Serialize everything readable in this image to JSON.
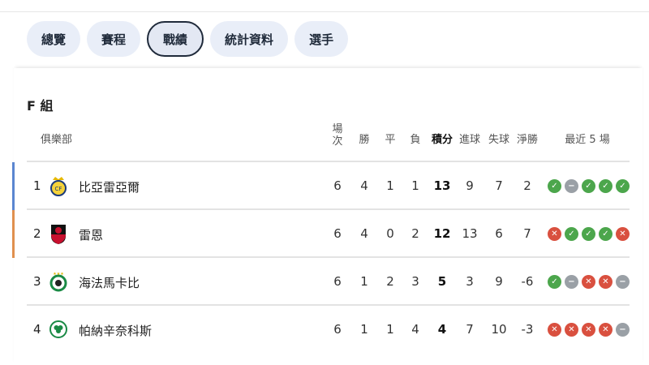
{
  "tabs": [
    "總覽",
    "賽程",
    "戰績",
    "統計資料",
    "選手"
  ],
  "active_tab": "戰績",
  "group_title": "F 組",
  "headers": {
    "club": "俱樂部",
    "played": "場\n次",
    "won": "勝",
    "drawn": "平",
    "lost": "負",
    "points": "積分",
    "gf": "進球",
    "ga": "失球",
    "gd": "淨勝",
    "form": "最近 5 場"
  },
  "colors": {
    "win": "#4ca64c",
    "draw": "#9aa0a6",
    "loss": "#d9503f",
    "qual1": "#5b86d0",
    "qual2": "#e0904f"
  },
  "rows": [
    {
      "rank": "1",
      "club": "比亞雷亞爾",
      "played": "6",
      "won": "4",
      "drawn": "1",
      "lost": "1",
      "points": "13",
      "gf": "9",
      "ga": "7",
      "gd": "2",
      "form": [
        "W",
        "D",
        "W",
        "W",
        "W"
      ],
      "logo": "villarreal-crest"
    },
    {
      "rank": "2",
      "club": "雷恩",
      "played": "6",
      "won": "4",
      "drawn": "0",
      "lost": "2",
      "points": "12",
      "gf": "13",
      "ga": "6",
      "gd": "7",
      "form": [
        "L",
        "W",
        "W",
        "W",
        "L"
      ],
      "logo": "rennes-crest"
    },
    {
      "rank": "3",
      "club": "海法馬卡比",
      "played": "6",
      "won": "1",
      "drawn": "2",
      "lost": "3",
      "points": "5",
      "gf": "3",
      "ga": "9",
      "gd": "-6",
      "form": [
        "W",
        "D",
        "L",
        "L",
        "D"
      ],
      "logo": "maccabi-haifa-crest"
    },
    {
      "rank": "4",
      "club": "帕納辛奈科斯",
      "played": "6",
      "won": "1",
      "drawn": "1",
      "lost": "4",
      "points": "4",
      "gf": "7",
      "ga": "10",
      "gd": "-3",
      "form": [
        "L",
        "L",
        "L",
        "L",
        "D"
      ],
      "logo": "panathinaikos-crest"
    }
  ]
}
